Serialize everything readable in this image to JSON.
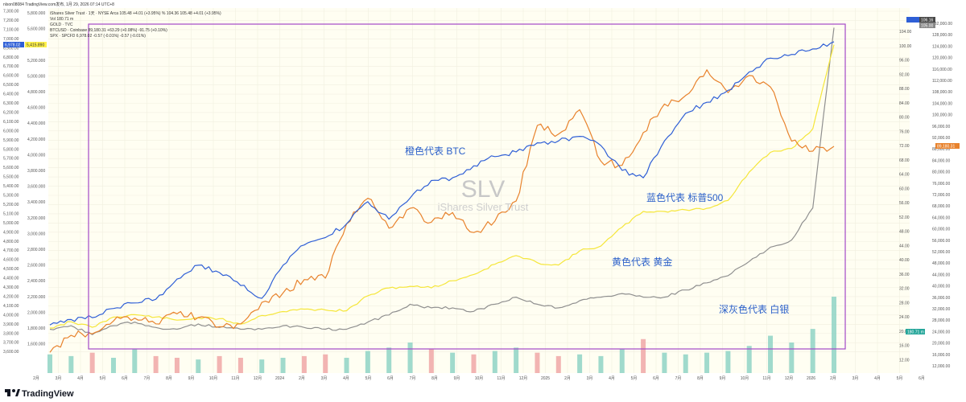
{
  "header": {
    "top_line": "nlson08084 TradingView.com发布, 1月 29, 2026 07:14 UTC+8",
    "symbol_line": "iShares Silver Trust · 1天 · NYSE Arca  105.48 +4.01 (+3.95%)  %  104.36  105.48 +4.01 (+3.95%)",
    "vol_line": "Vol  180.71 m",
    "gold_line": "GOLD · TVC",
    "btc_line": "BTCUSD · Coinbase  89,180.31  +63.29 (+0.08%)  -91.75 (+0.10%)",
    "spx_line": "SPX · SPCFD  6,978.02  -0.57 (-0.01%)  -0.57 (-0.01%)"
  },
  "left_badges": {
    "spx": "6,978.02",
    "gold": "5,415.890"
  },
  "right_badges": {
    "slv": "106.16",
    "slv2": "105.00",
    "btc": "89,180.31",
    "vol": "180.71 m"
  },
  "watermark": {
    "symbol": "SLV",
    "name": "iShares Silver Trust"
  },
  "annotations": {
    "btc": "橙色代表 BTC",
    "spx": "蓝色代表 标普500",
    "gold": "黄色代表 黄金",
    "silver": "深灰色代表 白银"
  },
  "logo": "TradingView",
  "colors": {
    "btc": "#e8822c",
    "spx": "#2f5fd6",
    "gold": "#f5e63a",
    "silver": "#8f8f8f",
    "frame": "#a349c7",
    "volume_up": "#8fd3c6",
    "volume_down": "#f0a7a7"
  },
  "chart_data": {
    "type": "line",
    "x": [
      "2022-12",
      "2023-01",
      "2023-02",
      "2023-03",
      "2023-04",
      "2023-05",
      "2023-06",
      "2023-07",
      "2023-08",
      "2023-09",
      "2023-10",
      "2023-11",
      "2023-12",
      "2024-01",
      "2024-02",
      "2024-03",
      "2024-04",
      "2024-05",
      "2024-06",
      "2024-07",
      "2024-08",
      "2024-09",
      "2024-10",
      "2024-11",
      "2024-12",
      "2025-01",
      "2025-02",
      "2025-03",
      "2025-04",
      "2025-05",
      "2025-06",
      "2025-07",
      "2025-08",
      "2025-09",
      "2025-10",
      "2025-11",
      "2025-12",
      "2026-01"
    ],
    "x_tick_labels": [
      "2月",
      "3月",
      "4月",
      "5月",
      "6月",
      "7月",
      "8月",
      "9月",
      "10月",
      "11月",
      "12月",
      "2024",
      "2月",
      "3月",
      "4月",
      "5月",
      "6月",
      "7月",
      "8月",
      "9月",
      "10月",
      "11月",
      "12月",
      "2025",
      "2月",
      "3月",
      "4月",
      "5月",
      "6月",
      "7月",
      "8月",
      "9月",
      "10月",
      "11月",
      "12月",
      "2026",
      "2月",
      "3月",
      "4月",
      "5月",
      "6月"
    ],
    "y_left_ticks": [
      "7,300.00",
      "7,200.00",
      "7,100.00",
      "7,000.00",
      "6,900.00",
      "6,800.00",
      "6,700.00",
      "6,600.00",
      "6,500.00",
      "6,400.00",
      "6,300.00",
      "6,200.00",
      "6,100.00",
      "6,000.00",
      "5,900.00",
      "5,800.00",
      "5,700.00",
      "5,600.00",
      "5,500.00",
      "5,400.00",
      "5,300.00",
      "5,200.00",
      "5,100.00",
      "5,000.00",
      "4,900.00",
      "4,800.00",
      "4,700.00",
      "4,600.00",
      "4,500.00",
      "4,400.00",
      "4,300.00",
      "4,200.00",
      "4,100.00",
      "4,000.00",
      "3,900.00",
      "3,800.00",
      "3,700.00",
      "3,600.00"
    ],
    "y_left2_ticks": [
      "5,800.000",
      "5,600.000",
      "5,400.000",
      "5,200.000",
      "5,000.000",
      "4,800.000",
      "4,600.000",
      "4,400.000",
      "4,200.000",
      "4,000.000",
      "3,800.000",
      "3,600.000",
      "3,400.000",
      "3,200.000",
      "3,000.000",
      "2,800.000",
      "2,600.000",
      "2,400.000",
      "2,200.000",
      "2,000.000",
      "1,800.000",
      "1,600.000"
    ],
    "y_right_slv_ticks": [
      "104.00",
      "100.00",
      "96.00",
      "92.00",
      "88.00",
      "84.00",
      "80.00",
      "76.00",
      "72.00",
      "68.00",
      "64.00",
      "60.00",
      "56.00",
      "52.00",
      "48.00",
      "44.00",
      "40.00",
      "36.00",
      "32.00",
      "28.00",
      "24.00",
      "20.00",
      "16.00",
      "12.00"
    ],
    "y_right_btc_ticks": [
      "132,000.00",
      "128,000.00",
      "124,000.00",
      "120,000.00",
      "116,000.00",
      "112,000.00",
      "108,000.00",
      "104,000.00",
      "100,000.00",
      "96,000.00",
      "92,000.00",
      "88,000.00",
      "84,000.00",
      "80,000.00",
      "76,000.00",
      "72,000.00",
      "68,000.00",
      "64,000.00",
      "60,000.00",
      "56,000.00",
      "52,000.00",
      "48,000.00",
      "44,000.00",
      "40,000.00",
      "36,000.00",
      "32,000.00",
      "28,000.00",
      "24,000.00",
      "20,000.00",
      "16,000.00",
      "12,000.00"
    ],
    "series": [
      {
        "name": "SPX",
        "values": [
          3900,
          3960,
          3980,
          4080,
          4140,
          4180,
          4400,
          4550,
          4470,
          4330,
          4190,
          4550,
          4770,
          4850,
          5000,
          5240,
          5050,
          5280,
          5470,
          5500,
          5630,
          5730,
          5780,
          5880,
          5900,
          5950,
          5850,
          5580,
          5500,
          5900,
          6200,
          6320,
          6450,
          6650,
          6800,
          6840,
          6900,
          6978
        ]
      },
      {
        "name": "GOLD",
        "values": [
          1820,
          1900,
          1830,
          1960,
          1990,
          1960,
          1920,
          1950,
          1940,
          1870,
          1980,
          2030,
          2060,
          2050,
          2040,
          2230,
          2330,
          2350,
          2330,
          2420,
          2500,
          2630,
          2740,
          2650,
          2620,
          2800,
          2860,
          3100,
          3300,
          3300,
          3320,
          3340,
          3440,
          3800,
          4050,
          4100,
          4350,
          5415
        ]
      },
      {
        "name": "BTCUSD",
        "values": [
          17000,
          23000,
          23500,
          28000,
          29000,
          27000,
          30500,
          29200,
          26000,
          27000,
          34500,
          37800,
          42500,
          43000,
          62000,
          71000,
          60500,
          67500,
          62600,
          66000,
          59000,
          63000,
          70000,
          96500,
          93500,
          102000,
          84000,
          82500,
          94000,
          104000,
          107000,
          116000,
          108000,
          114000,
          110000,
          91000,
          87500,
          89180
        ]
      },
      {
        "name": "SLV",
        "values": [
          21,
          22,
          19.5,
          22,
          23,
          21.5,
          21,
          22.5,
          21.5,
          21,
          21,
          22,
          21.5,
          21,
          21,
          23,
          25,
          28,
          27,
          27,
          26,
          28,
          30,
          28,
          27,
          29,
          30,
          31,
          30,
          30,
          32,
          34,
          36,
          40,
          44,
          46,
          55,
          105.48
        ]
      }
    ],
    "volume": [
      11,
      10,
      12,
      9,
      14,
      10,
      9,
      8,
      10,
      9,
      8,
      9,
      10,
      11,
      9,
      13,
      15,
      18,
      14,
      12,
      11,
      13,
      15,
      12,
      10,
      11,
      10,
      14,
      20,
      12,
      11,
      12,
      13,
      16,
      22,
      18,
      26,
      45
    ],
    "ylabel": "",
    "grid": true,
    "legend": "top-left"
  }
}
